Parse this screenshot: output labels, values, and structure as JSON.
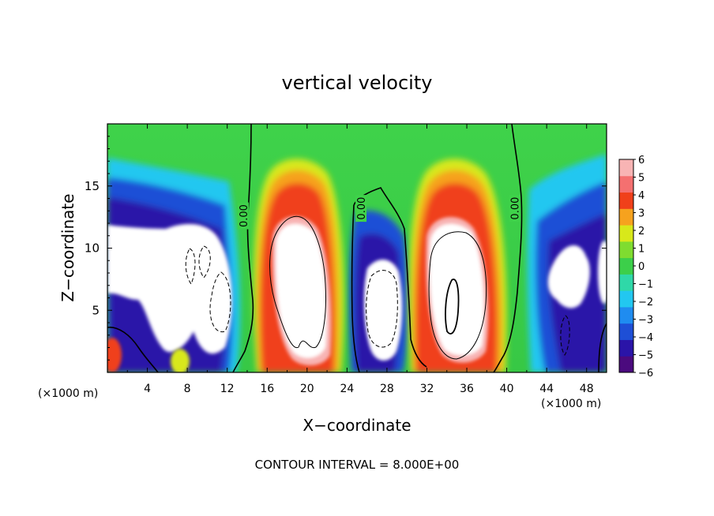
{
  "chart_data": {
    "type": "heatmap",
    "title": "vertical velocity",
    "xlabel": "X−coordinate",
    "ylabel": "Z−coordinate",
    "x_unit_label_left": "(×1000 m)",
    "x_unit_label_right": "(×1000 m)",
    "xlim": [
      0,
      50
    ],
    "ylim": [
      0,
      20
    ],
    "x_ticks": [
      {
        "value": 4,
        "label": "4"
      },
      {
        "value": 8,
        "label": "8"
      },
      {
        "value": 12,
        "label": "12"
      },
      {
        "value": 16,
        "label": "16"
      },
      {
        "value": 20,
        "label": "20"
      },
      {
        "value": 24,
        "label": "24"
      },
      {
        "value": 28,
        "label": "28"
      },
      {
        "value": 32,
        "label": "32"
      },
      {
        "value": 36,
        "label": "36"
      },
      {
        "value": 40,
        "label": "40"
      },
      {
        "value": 44,
        "label": "44"
      },
      {
        "value": 48,
        "label": "48"
      }
    ],
    "y_ticks": [
      {
        "value": 5,
        "label": "5"
      },
      {
        "value": 10,
        "label": "10"
      },
      {
        "value": 15,
        "label": "15"
      }
    ],
    "colorbar": {
      "min": -6,
      "max": 6,
      "labels": [
        "6",
        "5",
        "4",
        "3",
        "2",
        "1",
        "0",
        "−1",
        "−2",
        "−3",
        "−4",
        "−5",
        "−6"
      ],
      "colors": [
        "#4b0a7e",
        "#2a14a8",
        "#1e4fd6",
        "#1f8cf0",
        "#22c7f0",
        "#2fd8a8",
        "#3ccf4a",
        "#7fdc30",
        "#d8e81a",
        "#f6a21e",
        "#f0401a",
        "#f47070",
        "#f8b4b4"
      ]
    },
    "contour_labels": [
      {
        "text": "0.00",
        "x": 13.6,
        "z": 12.6
      },
      {
        "text": "0.00",
        "x": 25.4,
        "z": 13.2
      },
      {
        "text": "0.00",
        "x": 40.8,
        "z": 13.2
      }
    ],
    "updraft_regions": [
      {
        "x_center": 18.8,
        "z_center": 9.0,
        "x_halfwidth": 4.2,
        "z_top": 17.0
      },
      {
        "x_center": 34.6,
        "z_center": 9.0,
        "x_halfwidth": 4.2,
        "z_top": 17.0
      }
    ],
    "downdraft_regions": [
      {
        "x_center": 7.5,
        "z_center": 10.0,
        "x_halfwidth": 5.0,
        "z_top": 15.0
      },
      {
        "x_center": 27.3,
        "z_center": 7.0,
        "x_halfwidth": 2.5,
        "z_top": 11.0
      },
      {
        "x_center": 46.0,
        "z_center": 9.0,
        "x_halfwidth": 3.5,
        "z_top": 14.0
      }
    ],
    "grid": false,
    "colorbar_placement": "right"
  },
  "footer": {
    "contour_interval": "CONTOUR INTERVAL = 8.000E+00"
  }
}
